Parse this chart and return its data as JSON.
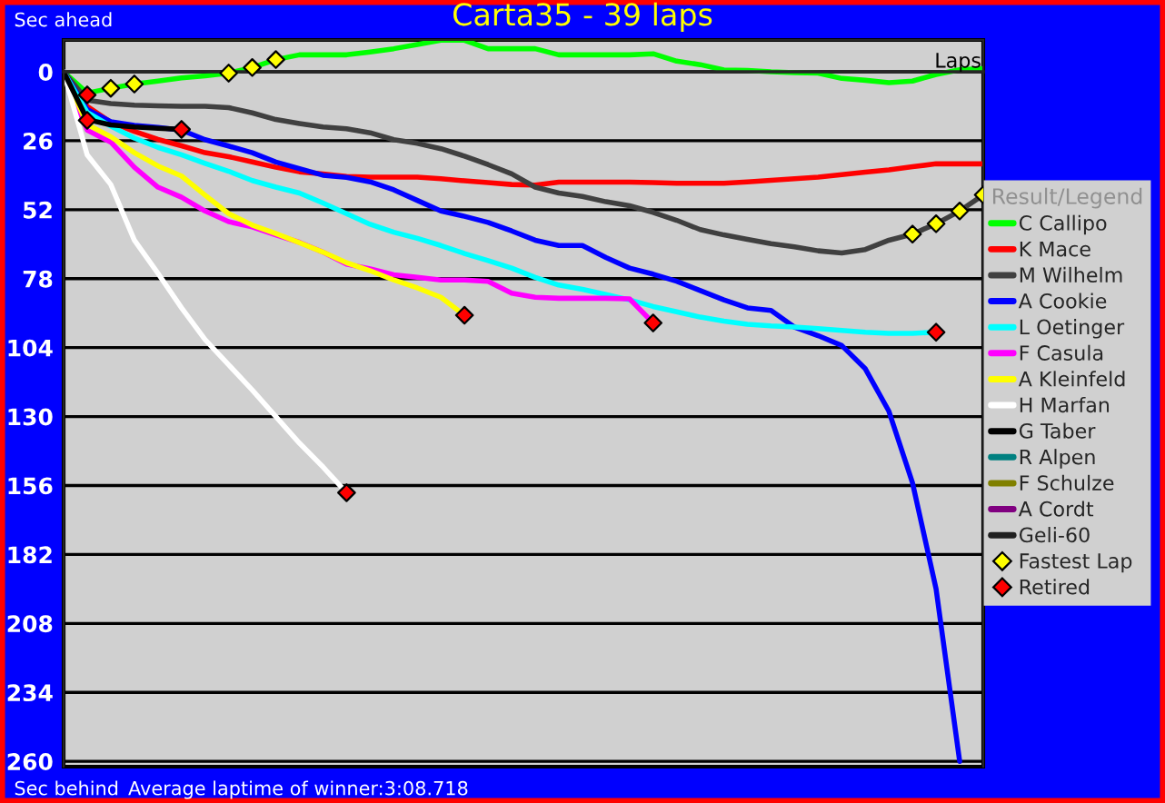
{
  "chart_data": {
    "type": "line",
    "title": "Carta35 - 39 laps",
    "xlabel": "Laps",
    "legend_title": "Result/Legend",
    "annotations": [
      "Sec ahead",
      "Sec behind",
      "Average laptime of winner:3:08.718"
    ],
    "categories": [
      null,
      null,
      null,
      null,
      null,
      null,
      null,
      null,
      null,
      null,
      null,
      null,
      null,
      null,
      null,
      null,
      null,
      null,
      null,
      null,
      null,
      null,
      null,
      null,
      null,
      null,
      null,
      null,
      null,
      null,
      null,
      null,
      null,
      null,
      null,
      null,
      null,
      null,
      null,
      null
    ],
    "ylim": [
      262,
      -12
    ],
    "yticks": [
      0,
      26,
      52,
      78,
      104,
      130,
      156,
      182,
      208,
      234,
      260
    ],
    "grid": "y",
    "legend": "right",
    "marker": "none",
    "line_style": "solid",
    "series": [
      {
        "name": "C Callipo",
        "color": "#00ff00",
        "values": [
          0,
          8,
          6.2,
          4.6,
          3.5,
          2.3,
          1.5,
          0.5,
          -1.6,
          -4.6,
          -6.4,
          -6.4,
          -6.4,
          -7.5,
          -8.7,
          -10.3,
          -11.9,
          -11.9,
          -8.7,
          -8.7,
          -8.7,
          -6.4,
          -6.4,
          -6.4,
          -6.4,
          -6.8,
          -4,
          -2.7,
          -0.7,
          -0.5,
          0,
          0.3,
          0.5,
          2.5,
          3.2,
          4.1,
          3.5,
          1,
          -0.8,
          -1.2
        ]
      },
      {
        "name": "K Mace",
        "color": "#ff0000",
        "values": [
          0,
          13,
          19,
          22.5,
          25.5,
          27.9,
          30.5,
          32,
          34,
          36,
          37.7,
          38.5,
          39.5,
          39.7,
          39.7,
          39.7,
          40.3,
          41.1,
          41.8,
          42.5,
          42.7,
          41.6,
          41.6,
          41.6,
          41.6,
          41.8,
          42,
          42,
          42,
          41.5,
          40.9,
          40.3,
          39.7,
          38.8,
          37.8,
          37,
          35.8,
          34.7,
          34.7,
          34.7
        ]
      },
      {
        "name": "M Wilhelm",
        "color": "#404040",
        "values": [
          0,
          10.7,
          12,
          12.6,
          12.8,
          13,
          13,
          13.5,
          15.5,
          18,
          19.5,
          20.8,
          21.5,
          23,
          25.6,
          27,
          29,
          31.8,
          35,
          38.5,
          43.5,
          45.7,
          47,
          49,
          50.5,
          53,
          56,
          59.5,
          61.5,
          63.2,
          64.8,
          66,
          67.5,
          68.3,
          67,
          63.5,
          61.2,
          57.3,
          52.5,
          46.4
        ]
      },
      {
        "name": "A Cookie",
        "color": "#0000ff",
        "values": [
          0,
          14.2,
          18.8,
          20.2,
          21,
          22,
          25.6,
          28,
          30.5,
          34,
          36.5,
          39,
          39.8,
          41.5,
          44.5,
          48.5,
          52.5,
          54.5,
          56.8,
          60,
          63.5,
          65.5,
          65.5,
          70,
          74,
          76.3,
          79,
          82.5,
          86,
          89,
          90,
          96.3,
          99.5,
          103.2,
          112,
          128,
          155,
          195,
          260,
          null
        ]
      },
      {
        "name": "L Oetinger",
        "color": "#00ffff",
        "values": [
          0,
          15.3,
          20.5,
          25,
          28.5,
          31.3,
          34.5,
          37.5,
          41,
          43.5,
          45.7,
          49.5,
          53.5,
          57.5,
          60.5,
          62.8,
          65.5,
          68.5,
          71.2,
          74,
          77.5,
          80.4,
          82,
          84,
          86,
          88.5,
          90.5,
          92.5,
          94,
          95.2,
          95.8,
          96.2,
          96.8,
          97.5,
          98.2,
          98.6,
          98.6,
          98.2,
          null,
          null
        ]
      },
      {
        "name": "F Casula",
        "color": "#ff00ff",
        "values": [
          0,
          22,
          26.5,
          36,
          43.5,
          47.3,
          52.5,
          56.5,
          58.5,
          61.5,
          64.3,
          68,
          72.5,
          74.3,
          76.5,
          77.5,
          78.5,
          78.5,
          79,
          83.5,
          85,
          85.4,
          85.4,
          85.4,
          85.6,
          94.7,
          null,
          null,
          null,
          null,
          null,
          null,
          null,
          null,
          null,
          null,
          null,
          null,
          null,
          null
        ]
      },
      {
        "name": "A Kleinfeld",
        "color": "#ffff00",
        "values": [
          0,
          19.9,
          24.5,
          30.5,
          35.5,
          39.3,
          46.5,
          53.5,
          57.8,
          61,
          64.4,
          68,
          72,
          75,
          78.5,
          81.5,
          85,
          91.8,
          null,
          null,
          null,
          null,
          null,
          null,
          null,
          null,
          null,
          null,
          null,
          null,
          null,
          null,
          null,
          null,
          null,
          null,
          null,
          null,
          null,
          null
        ]
      },
      {
        "name": "H Marfan",
        "color": "#ffffff",
        "values": [
          0,
          31.3,
          42.5,
          63.5,
          76,
          89,
          101,
          110.5,
          120,
          130,
          140,
          149,
          158.7,
          null,
          null,
          null,
          null,
          null,
          null,
          null,
          null,
          null,
          null,
          null,
          null,
          null,
          null,
          null,
          null,
          null,
          null,
          null,
          null,
          null,
          null,
          null,
          null,
          null,
          null,
          null
        ]
      },
      {
        "name": "G Taber",
        "color": "#000000",
        "values": [
          0,
          18,
          20,
          20.8,
          21.3,
          21.7,
          null,
          null,
          null,
          null,
          null,
          null,
          null,
          null,
          null,
          null,
          null,
          null,
          null,
          null,
          null,
          null,
          null,
          null,
          null,
          null,
          null,
          null,
          null,
          null,
          null,
          null,
          null,
          null,
          null,
          null,
          null,
          null,
          null,
          null
        ]
      },
      {
        "name": "R Alpen",
        "color": "#008080",
        "values": [
          null,
          null,
          null,
          null,
          null,
          null,
          null,
          null,
          null,
          null,
          null,
          null,
          null,
          null,
          null,
          null,
          null,
          null,
          null,
          null,
          null,
          null,
          null,
          null,
          null,
          null,
          null,
          null,
          null,
          null,
          null,
          null,
          null,
          null,
          null,
          null,
          null,
          null,
          null,
          null
        ]
      },
      {
        "name": "F Schulze",
        "color": "#808000",
        "values": [
          null,
          null,
          null,
          null,
          null,
          null,
          null,
          null,
          null,
          null,
          null,
          null,
          null,
          null,
          null,
          null,
          null,
          null,
          null,
          null,
          null,
          null,
          null,
          null,
          null,
          null,
          null,
          null,
          null,
          null,
          null,
          null,
          null,
          null,
          null,
          null,
          null,
          null,
          null,
          null
        ]
      },
      {
        "name": "A Cordt",
        "color": "#800080",
        "values": [
          null,
          null,
          null,
          null,
          null,
          null,
          null,
          null,
          null,
          null,
          null,
          null,
          null,
          null,
          null,
          null,
          null,
          null,
          null,
          null,
          null,
          null,
          null,
          null,
          null,
          null,
          null,
          null,
          null,
          null,
          null,
          null,
          null,
          null,
          null,
          null,
          null,
          null,
          null,
          null
        ]
      },
      {
        "name": "Geli-60",
        "color": "#202020",
        "values": [
          null,
          null,
          null,
          null,
          null,
          null,
          null,
          null,
          null,
          null,
          null,
          null,
          null,
          null,
          null,
          null,
          null,
          null,
          null,
          null,
          null,
          null,
          null,
          null,
          null,
          null,
          null,
          null,
          null,
          null,
          null,
          null,
          null,
          null,
          null,
          null,
          null,
          null,
          null,
          null
        ]
      },
      {
        "name": "Fastest Lap",
        "type": "scatter",
        "marker": "diamond",
        "color": "#ffff00",
        "values": [
          null,
          null,
          6.2,
          4.6,
          null,
          null,
          null,
          0.5,
          -1.6,
          -4.6,
          null,
          null,
          null,
          null,
          null,
          null,
          null,
          null,
          null,
          null,
          null,
          null,
          null,
          null,
          null,
          null,
          null,
          null,
          null,
          null,
          null,
          null,
          null,
          null,
          null,
          null,
          61.2,
          57.3,
          52.5,
          46.4
        ]
      },
      {
        "name": "Retired",
        "type": "scatter",
        "marker": "diamond",
        "color": "#ff0000",
        "values": [
          null,
          8.7,
          null,
          null,
          null,
          21.7,
          null,
          null,
          null,
          null,
          null,
          null,
          158.7,
          null,
          null,
          null,
          null,
          91.8,
          null,
          null,
          null,
          null,
          null,
          null,
          null,
          94.7,
          null,
          null,
          null,
          null,
          null,
          null,
          null,
          null,
          null,
          null,
          null,
          98.2,
          null,
          null
        ]
      },
      {
        "type": "scatter",
        "marker": "diamond",
        "color": "#ff0000",
        "values": [
          null,
          18.3,
          null,
          null,
          null,
          null,
          null,
          null,
          null,
          null,
          null,
          null,
          null,
          null,
          null,
          null,
          null,
          null,
          null,
          null,
          null,
          null,
          null,
          null,
          null,
          null,
          null,
          null,
          null,
          null,
          null,
          null,
          null,
          null,
          null,
          null,
          null,
          null,
          null,
          null
        ]
      }
    ]
  }
}
